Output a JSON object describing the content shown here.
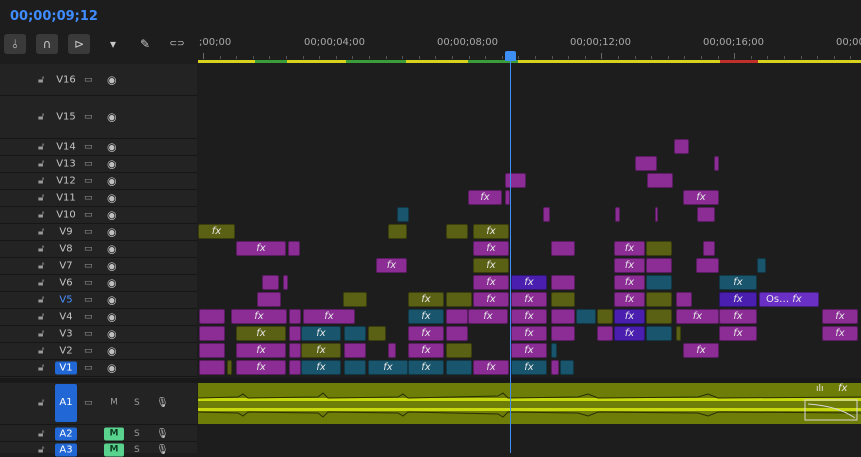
{
  "timecode": "00;00;09;12",
  "toolbar": {
    "icons": [
      "insert-edit-icon",
      "snap-magnet-icon",
      "linked-selection-icon",
      "add-marker-icon",
      "wrench-icon",
      "captions-icon"
    ]
  },
  "ruler": {
    "labels": [
      ";00;00",
      "00;00;04;00",
      "00;00;08;00",
      "00;00;12;00",
      "00;00;16;00",
      "00;00"
    ]
  },
  "video_tracks": [
    "V16",
    "V15",
    "V14",
    "V13",
    "V12",
    "V11",
    "V10",
    "V9",
    "V8",
    "V7",
    "V6",
    "V5",
    "V4",
    "V3",
    "V2",
    "V1"
  ],
  "audio_tracks": [
    "A1",
    "A2",
    "A3"
  ],
  "audio": {
    "m_label": "M",
    "s_label": "S"
  },
  "clip_fx_label": "fx",
  "nested_clip_label": "Os…",
  "colors": {
    "accent": "#3f8cff",
    "video_purple": "#8b2d95",
    "video_olive": "#5a6114",
    "video_teal": "#19566d",
    "audio_green": "#6e7c08",
    "mute_on": "#59d38e",
    "work_area": "#d6d21e"
  }
}
